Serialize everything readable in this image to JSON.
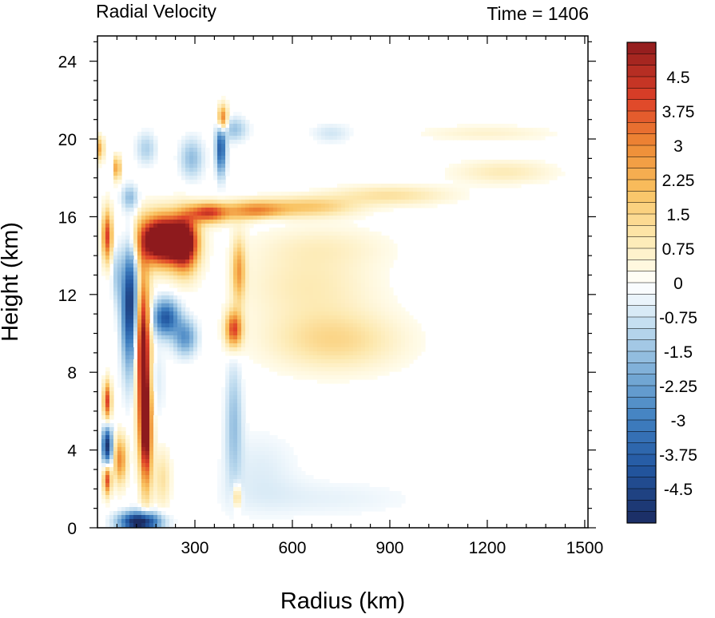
{
  "chart_data": {
    "type": "heatmap",
    "title_left": "Radial Velocity",
    "title_right": "Time = 1406",
    "xlabel": "Radius (km)",
    "ylabel": "Height (km)",
    "xlim": [
      0,
      1510
    ],
    "ylim": [
      0,
      25.3
    ],
    "x_ticks": [
      300,
      600,
      900,
      1200,
      1500
    ],
    "y_ticks": [
      0,
      4,
      8,
      12,
      16,
      20,
      24
    ],
    "colorbar": {
      "range": [
        -5.25,
        5.25
      ],
      "step": 0.25,
      "tick_labels": [
        "4.5",
        "3.75",
        "3",
        "2.25",
        "1.5",
        "0.75",
        "0",
        "-0.75",
        "-1.5",
        "-2.25",
        "-3",
        "-3.75",
        "-4.5"
      ],
      "stops": [
        {
          "v": -5.25,
          "c": "#1b2c62"
        },
        {
          "v": -4.0,
          "c": "#2358a2"
        },
        {
          "v": -3.0,
          "c": "#3f7fc0"
        },
        {
          "v": -2.0,
          "c": "#78abd6"
        },
        {
          "v": -1.0,
          "c": "#bcdaee"
        },
        {
          "v": -0.25,
          "c": "#f3f9fd"
        },
        {
          "v": 0.0,
          "c": "#ffffff"
        },
        {
          "v": 0.25,
          "c": "#fffbe8"
        },
        {
          "v": 1.0,
          "c": "#fde9b0"
        },
        {
          "v": 2.0,
          "c": "#f9c261"
        },
        {
          "v": 3.0,
          "c": "#ee8a34"
        },
        {
          "v": 4.0,
          "c": "#de4128"
        },
        {
          "v": 5.25,
          "c": "#8e1a1d"
        }
      ]
    },
    "features": [
      {
        "r": 200,
        "z": 14.8,
        "sr": 70,
        "sz": 1.2,
        "v": 8
      },
      {
        "r": 270,
        "z": 14.6,
        "sr": 40,
        "sz": 1.4,
        "v": 5
      },
      {
        "r": 340,
        "z": 16.2,
        "sr": 60,
        "sz": 0.5,
        "v": 4
      },
      {
        "r": 480,
        "z": 16.3,
        "sr": 90,
        "sz": 0.5,
        "v": 2.8
      },
      {
        "r": 650,
        "z": 16.5,
        "sr": 140,
        "sz": 0.5,
        "v": 1.8
      },
      {
        "r": 900,
        "z": 17.1,
        "sr": 180,
        "sz": 0.5,
        "v": 1.2
      },
      {
        "r": 1250,
        "z": 18.3,
        "sr": 150,
        "sz": 0.6,
        "v": 0.9
      },
      {
        "r": 1200,
        "z": 20.3,
        "sr": 200,
        "sz": 0.4,
        "v": 0.6
      },
      {
        "r": 140,
        "z": 9.0,
        "sr": 22,
        "sz": 4.0,
        "v": 6
      },
      {
        "r": 150,
        "z": 5.0,
        "sr": 18,
        "sz": 3.0,
        "v": 5
      },
      {
        "r": 420,
        "z": 10.2,
        "sr": 25,
        "sz": 0.9,
        "v": 4
      },
      {
        "r": 435,
        "z": 13.2,
        "sr": 20,
        "sz": 1.6,
        "v": 2.5
      },
      {
        "r": 730,
        "z": 9.6,
        "sr": 200,
        "sz": 1.5,
        "v": 1.4
      },
      {
        "r": 650,
        "z": 12.5,
        "sr": 200,
        "sz": 2.0,
        "v": 0.9
      },
      {
        "r": 700,
        "z": 14.5,
        "sr": 200,
        "sz": 1.0,
        "v": 0.5
      },
      {
        "r": 30,
        "z": 15.0,
        "sr": 15,
        "sz": 1.3,
        "v": 4
      },
      {
        "r": 30,
        "z": 6.5,
        "sr": 12,
        "sz": 1.0,
        "v": 4
      },
      {
        "r": 30,
        "z": 2.5,
        "sr": 12,
        "sz": 0.8,
        "v": 4
      },
      {
        "r": 70,
        "z": 3.5,
        "sr": 20,
        "sz": 1.2,
        "v": 3
      },
      {
        "r": 10,
        "z": 19.5,
        "sr": 8,
        "sz": 0.6,
        "v": 3
      },
      {
        "r": 60,
        "z": 18.5,
        "sr": 10,
        "sz": 0.6,
        "v": 3
      },
      {
        "r": 385,
        "z": 21.0,
        "sr": 15,
        "sz": 0.7,
        "v": 4
      },
      {
        "r": 430,
        "z": 1.6,
        "sr": 12,
        "sz": 0.6,
        "v": 2
      },
      {
        "r": 200,
        "z": 2.5,
        "sr": 25,
        "sz": 1.5,
        "v": 1.2
      },
      {
        "r": 100,
        "z": 11.5,
        "sr": 25,
        "sz": 3.0,
        "v": -5
      },
      {
        "r": 210,
        "z": 10.8,
        "sr": 40,
        "sz": 0.9,
        "v": -4
      },
      {
        "r": 270,
        "z": 9.8,
        "sr": 35,
        "sz": 0.9,
        "v": -2.5
      },
      {
        "r": 30,
        "z": 4.2,
        "sr": 15,
        "sz": 1.0,
        "v": -5
      },
      {
        "r": 130,
        "z": 0.3,
        "sr": 60,
        "sz": 0.5,
        "v": -6
      },
      {
        "r": 380,
        "z": 19.5,
        "sr": 15,
        "sz": 1.3,
        "v": -4
      },
      {
        "r": 290,
        "z": 19.0,
        "sr": 35,
        "sz": 1.0,
        "v": -1.6
      },
      {
        "r": 420,
        "z": 20.5,
        "sr": 40,
        "sz": 0.6,
        "v": -1.5
      },
      {
        "r": 420,
        "z": 5.5,
        "sr": 25,
        "sz": 3.0,
        "v": -1.5
      },
      {
        "r": 500,
        "z": 3.0,
        "sr": 120,
        "sz": 2.0,
        "v": -0.5
      },
      {
        "r": 700,
        "z": 1.5,
        "sr": 300,
        "sz": 1.0,
        "v": -0.4
      },
      {
        "r": 720,
        "z": 20.3,
        "sr": 60,
        "sz": 0.5,
        "v": -0.7
      },
      {
        "r": 150,
        "z": 7.5,
        "sr": 50,
        "sz": 2.0,
        "v": -1.0
      },
      {
        "r": 60,
        "z": 13.0,
        "sr": 15,
        "sz": 1.5,
        "v": -1.2
      },
      {
        "r": 520,
        "z": 15.8,
        "sr": 60,
        "sz": 0.3,
        "v": -0.6
      },
      {
        "r": 100,
        "z": 17.0,
        "sr": 25,
        "sz": 0.6,
        "v": -1.5
      },
      {
        "r": 150,
        "z": 19.5,
        "sr": 30,
        "sz": 0.8,
        "v": -1.2
      }
    ]
  }
}
